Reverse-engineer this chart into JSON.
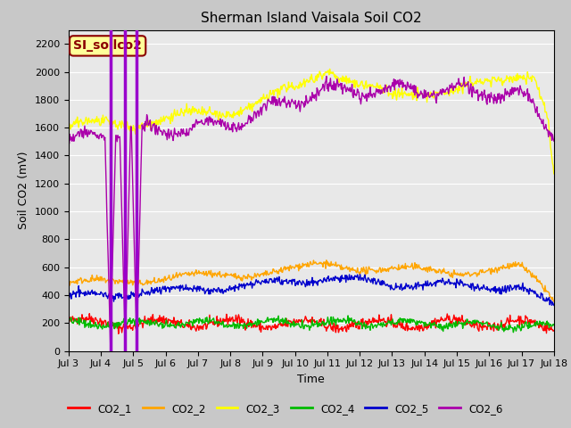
{
  "title": "Sherman Island Vaisala Soil CO2",
  "ylabel": "Soil CO2 (mV)",
  "xlabel": "Time",
  "annotation": "SI_soilco2",
  "annotation_color": "#8B0000",
  "annotation_bg": "#FFFF99",
  "annotation_border": "#8B0000",
  "ylim": [
    0,
    2300
  ],
  "yticks": [
    0,
    200,
    400,
    600,
    800,
    1000,
    1200,
    1400,
    1600,
    1800,
    2000,
    2200
  ],
  "xtick_labels": [
    "Jul 3",
    "Jul 4",
    "Jul 5",
    "Jul 6",
    "Jul 7",
    "Jul 8",
    "Jul 9",
    "Jul 10",
    "Jul 11",
    "Jul 12",
    "Jul 13",
    "Jul 14",
    "Jul 15",
    "Jul 16",
    "Jul 17",
    "Jul 18"
  ],
  "n_points": 720,
  "colors": {
    "CO2_1": "#FF0000",
    "CO2_2": "#FFA500",
    "CO2_3": "#FFFF00",
    "CO2_4": "#00BB00",
    "CO2_5": "#0000CC",
    "CO2_6": "#AA00AA"
  },
  "spike_color": "#9900CC",
  "bg_color": "#C8C8C8",
  "plot_bg": "#E8E8E8",
  "grid_color": "#FFFFFF",
  "linewidth": 1.0,
  "title_fontsize": 11,
  "label_fontsize": 9,
  "tick_fontsize": 8
}
